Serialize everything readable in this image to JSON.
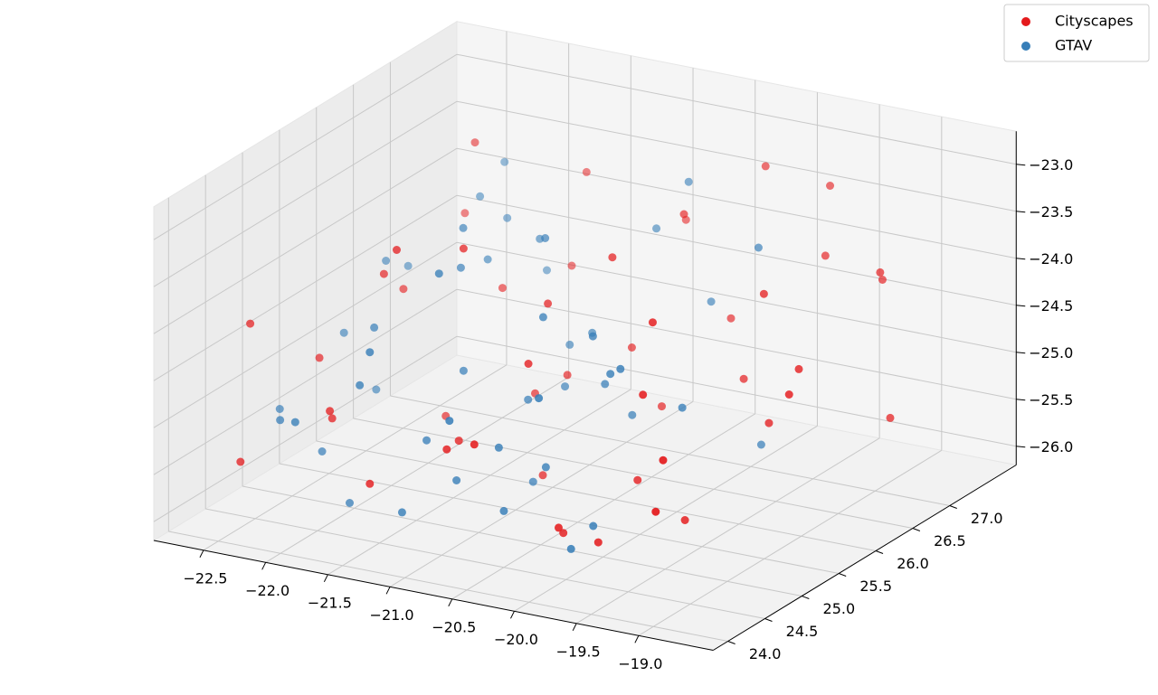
{
  "chart_data": {
    "type": "scatter3d",
    "xlim": [
      -22.9,
      -18.4
    ],
    "ylim": [
      23.8,
      27.9
    ],
    "zlim": [
      -26.2,
      -22.65
    ],
    "xticks": [
      {
        "value": -22.5,
        "label": "−22.5"
      },
      {
        "value": -22.0,
        "label": "−22.0"
      },
      {
        "value": -21.5,
        "label": "−21.5"
      },
      {
        "value": -21.0,
        "label": "−21.0"
      },
      {
        "value": -20.5,
        "label": "−20.5"
      },
      {
        "value": -20.0,
        "label": "−20.0"
      },
      {
        "value": -19.5,
        "label": "−19.5"
      },
      {
        "value": -19.0,
        "label": "−19.0"
      }
    ],
    "yticks": [
      {
        "value": 24.0,
        "label": "24.0"
      },
      {
        "value": 24.5,
        "label": "24.5"
      },
      {
        "value": 25.0,
        "label": "25.0"
      },
      {
        "value": 25.5,
        "label": "25.5"
      },
      {
        "value": 26.0,
        "label": "26.0"
      },
      {
        "value": 26.5,
        "label": "26.5"
      },
      {
        "value": 27.0,
        "label": "27.0"
      }
    ],
    "zticks": [
      {
        "value": -26.0,
        "label": "−26.0"
      },
      {
        "value": -25.5,
        "label": "−25.5"
      },
      {
        "value": -25.0,
        "label": "−25.0"
      },
      {
        "value": -24.5,
        "label": "−24.5"
      },
      {
        "value": -24.0,
        "label": "−24.0"
      },
      {
        "value": -23.5,
        "label": "−23.5"
      },
      {
        "value": -23.0,
        "label": "−23.0"
      }
    ],
    "grid": true,
    "legend": "upper right",
    "series": [
      {
        "name": "Cityscapes",
        "color": "#e41a1c",
        "x": [
          -22.4,
          -22.1,
          -21.8,
          -22.6,
          -21.5,
          -21.2,
          -20.9,
          -20.6,
          -20.3,
          -20.0,
          -19.7,
          -19.4,
          -19.1,
          -18.9,
          -19.6,
          -20.2,
          -20.8,
          -21.4,
          -22.0,
          -22.3,
          -21.0,
          -20.5,
          -19.9,
          -19.3,
          -18.8,
          -19.0,
          -19.8,
          -20.4,
          -21.1,
          -21.7,
          -22.5,
          -20.7,
          -20.1,
          -19.5,
          -19.2,
          -21.3,
          -21.9,
          -20.3,
          -19.6,
          -18.7,
          -22.2,
          -20.0,
          -19.4,
          -21.6,
          -20.9,
          -19.1,
          -18.9,
          -20.6,
          -21.5,
          -22.0
        ],
        "y": [
          25.2,
          26.8,
          25.9,
          24.6,
          27.3,
          26.1,
          24.4,
          25.0,
          26.6,
          27.2,
          26.4,
          25.1,
          24.3,
          26.9,
          27.4,
          24.8,
          25.6,
          24.2,
          25.4,
          27.0,
          26.2,
          24.1,
          25.3,
          26.0,
          25.5,
          27.1,
          24.6,
          25.8,
          24.9,
          26.5,
          24.3,
          27.3,
          26.9,
          24.7,
          25.9,
          25.3,
          24.5,
          26.3,
          25.0,
          26.7,
          26.0,
          24.4,
          27.0,
          24.9,
          25.7,
          24.2,
          25.8,
          26.4,
          27.1,
          24.7
        ],
        "z": [
          -24.8,
          -23.2,
          -25.6,
          -24.2,
          -23.6,
          -25.3,
          -25.0,
          -24.3,
          -23.4,
          -23.1,
          -24.9,
          -25.7,
          -24.6,
          -23.8,
          -23.3,
          -25.9,
          -24.0,
          -25.4,
          -23.9,
          -24.1,
          -25.1,
          -24.7,
          -25.5,
          -23.7,
          -24.4,
          -24.0,
          -25.8,
          -23.5,
          -25.2,
          -24.5,
          -25.5,
          -23.9,
          -24.6,
          -24.2,
          -25.0,
          -23.4,
          -24.9,
          -25.3,
          -23.6,
          -25.2,
          -24.4,
          -25.6,
          -23.8,
          -23.3,
          -25.9,
          -25.1,
          -24.3,
          -24.8,
          -24.5,
          -25.1
        ]
      },
      {
        "name": "GTAV",
        "color": "#377eb8",
        "x": [
          -22.3,
          -21.9,
          -21.6,
          -21.2,
          -20.8,
          -20.4,
          -22.0,
          -21.4,
          -20.9,
          -20.5,
          -22.5,
          -21.7,
          -21.0,
          -20.6,
          -20.2,
          -19.9,
          -22.2,
          -21.5,
          -21.1,
          -20.7,
          -22.4,
          -21.8,
          -21.3,
          -20.3,
          -19.7,
          -22.6,
          -21.9,
          -21.2,
          -20.8,
          -20.1,
          -22.1,
          -21.6,
          -20.9,
          -20.4,
          -19.8,
          -22.3,
          -21.4,
          -20.6,
          -20.0,
          -19.5,
          -22.0,
          -21.7,
          -21.0,
          -20.5,
          -19.6,
          -22.4,
          -21.3,
          -20.7,
          -20.2,
          -19.9
        ],
        "y": [
          24.5,
          25.1,
          25.8,
          24.3,
          26.2,
          24.9,
          26.7,
          24.2,
          25.5,
          27.0,
          25.7,
          26.3,
          24.7,
          25.2,
          26.8,
          24.4,
          24.9,
          25.6,
          26.4,
          24.1,
          26.1,
          24.6,
          25.3,
          25.9,
          26.6,
          25.0,
          26.9,
          24.8,
          25.4,
          24.3,
          27.2,
          24.4,
          26.0,
          25.7,
          24.9,
          25.8,
          26.5,
          24.6,
          25.1,
          26.3,
          24.2,
          27.1,
          25.9,
          24.5,
          25.4,
          26.4,
          24.8,
          26.9,
          25.2,
          24.7
        ],
        "z": [
          -25.1,
          -24.3,
          -23.5,
          -25.7,
          -24.6,
          -25.3,
          -23.7,
          -24.0,
          -25.0,
          -23.3,
          -24.8,
          -24.1,
          -25.5,
          -23.9,
          -24.4,
          -25.8,
          -25.6,
          -23.8,
          -24.9,
          -24.5,
          -24.2,
          -25.9,
          -24.7,
          -25.2,
          -23.6,
          -25.3,
          -24.0,
          -23.4,
          -25.8,
          -24.2,
          -23.6,
          -24.5,
          -25.1,
          -24.8,
          -24.1,
          -25.4,
          -23.9,
          -25.0,
          -24.3,
          -25.5,
          -24.9,
          -24.6,
          -23.5,
          -25.6,
          -24.7,
          -24.4,
          -25.2,
          -23.8,
          -24.0,
          -25.7
        ]
      }
    ]
  }
}
